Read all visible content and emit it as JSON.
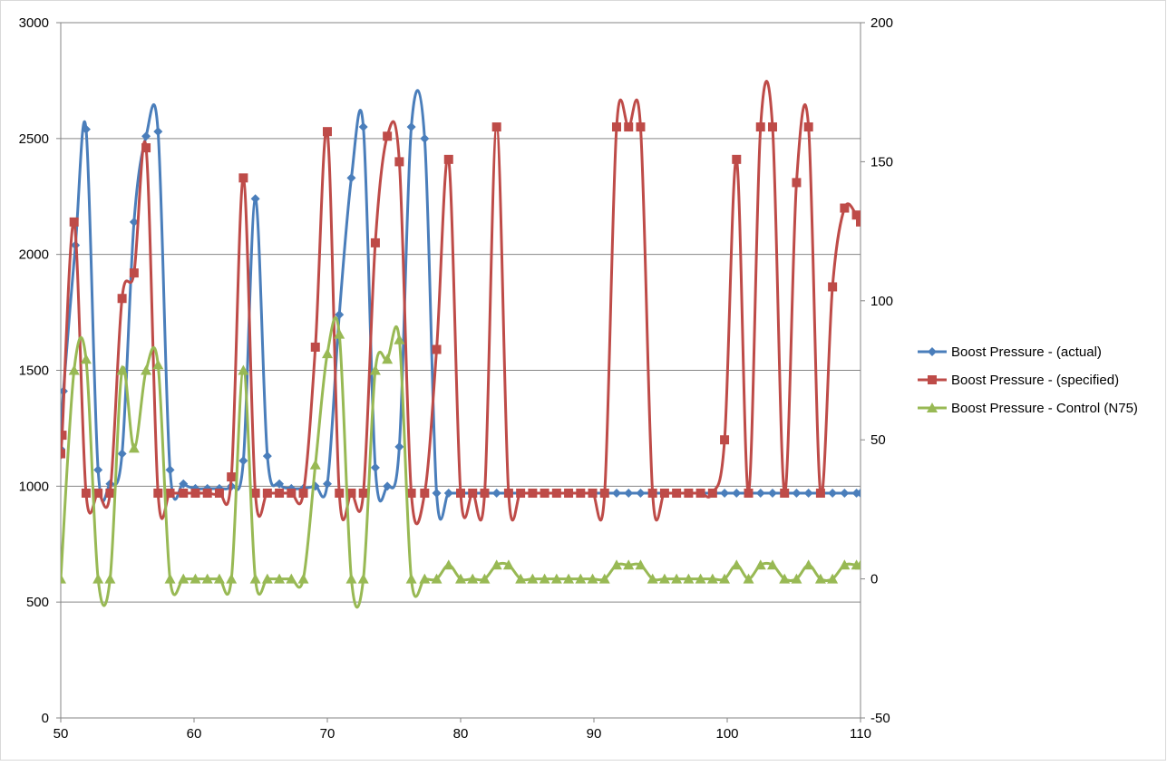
{
  "chart_data": {
    "type": "line",
    "title": "",
    "xlabel": "",
    "ylabel": "",
    "xlim": [
      50,
      110
    ],
    "ylim": [
      0,
      3000
    ],
    "y2lim": [
      -50,
      200
    ],
    "x_ticks": [
      "50",
      "60",
      "70",
      "80",
      "90",
      "100",
      "110"
    ],
    "y_ticks": [
      "0",
      "500",
      "1000",
      "1500",
      "2000",
      "2500",
      "3000"
    ],
    "y2_ticks": [
      "-50",
      "0",
      "50",
      "100",
      "150",
      "200"
    ],
    "x_tick_values": [
      50,
      60,
      70,
      80,
      90,
      100,
      110
    ],
    "y_tick_values": [
      0,
      500,
      1000,
      1500,
      2000,
      2500,
      3000
    ],
    "y2_tick_values": [
      -50,
      0,
      50,
      100,
      150,
      200
    ],
    "grid": "horizontal major",
    "legend": {
      "placement": "right"
    },
    "series": [
      {
        "name": "Boost Pressure - (actual)",
        "axis": "left",
        "color": "#4a7ebb",
        "marker": "diamond",
        "x": [
          50.0,
          50.2,
          51.1,
          51.9,
          52.8,
          53.7,
          54.6,
          55.5,
          56.4,
          57.3,
          58.2,
          59.2,
          60.1,
          61.0,
          61.9,
          62.8,
          63.7,
          64.6,
          65.5,
          66.4,
          67.3,
          68.2,
          69.1,
          70.0,
          70.9,
          71.8,
          72.7,
          73.6,
          74.5,
          75.4,
          76.3,
          77.3,
          78.2,
          79.1,
          80.0,
          80.9,
          81.8,
          82.7,
          83.6,
          84.5,
          85.4,
          86.3,
          87.2,
          88.1,
          89.0,
          89.9,
          90.8,
          91.7,
          92.6,
          93.5,
          94.4,
          95.3,
          96.2,
          97.1,
          98.0,
          98.9,
          99.8,
          100.7,
          101.6,
          102.5,
          103.4,
          104.3,
          105.2,
          106.1,
          107.0,
          107.9,
          108.8,
          109.7,
          110.0
        ],
        "y": [
          1160,
          1410,
          2040,
          2540,
          1070,
          1010,
          1140,
          2140,
          2510,
          2530,
          1070,
          1010,
          990,
          990,
          990,
          1000,
          1110,
          2240,
          1130,
          1010,
          990,
          990,
          1000,
          1010,
          1740,
          2330,
          2550,
          1080,
          1000,
          1170,
          2550,
          2500,
          970,
          970,
          970,
          970,
          970,
          970,
          970,
          970,
          970,
          970,
          970,
          970,
          970,
          970,
          970,
          970,
          970,
          970,
          970,
          970,
          970,
          970,
          970,
          970,
          970,
          970,
          970,
          970,
          970,
          970,
          970,
          970,
          970,
          970,
          970,
          970,
          970
        ]
      },
      {
        "name": "Boost Pressure - (specified)",
        "axis": "left",
        "color": "#be4b48",
        "marker": "square",
        "x": [
          50.0,
          50.1,
          51.0,
          51.9,
          52.8,
          53.7,
          54.6,
          55.5,
          56.4,
          57.3,
          58.2,
          59.2,
          60.1,
          61.0,
          61.9,
          62.8,
          63.7,
          64.6,
          65.5,
          66.4,
          67.3,
          68.2,
          69.1,
          70.0,
          70.9,
          71.8,
          72.7,
          73.6,
          74.5,
          75.4,
          76.3,
          77.3,
          78.2,
          79.1,
          80.0,
          80.9,
          81.8,
          82.7,
          83.6,
          84.5,
          85.4,
          86.3,
          87.2,
          88.1,
          89.0,
          89.9,
          90.8,
          91.7,
          92.6,
          93.5,
          94.4,
          95.3,
          96.2,
          97.1,
          98.0,
          98.9,
          99.8,
          100.7,
          101.6,
          102.5,
          103.4,
          104.3,
          105.2,
          106.1,
          107.0,
          107.9,
          108.8,
          109.7,
          110.0
        ],
        "y": [
          1140,
          1220,
          2140,
          970,
          970,
          970,
          1810,
          1920,
          2460,
          970,
          970,
          970,
          970,
          970,
          970,
          1040,
          2330,
          970,
          970,
          970,
          970,
          970,
          1600,
          2530,
          970,
          970,
          970,
          2050,
          2510,
          2400,
          970,
          970,
          1590,
          2410,
          970,
          970,
          970,
          2550,
          970,
          970,
          970,
          970,
          970,
          970,
          970,
          970,
          970,
          2550,
          2550,
          2550,
          970,
          970,
          970,
          970,
          970,
          970,
          1200,
          2410,
          970,
          2550,
          2550,
          970,
          2310,
          2550,
          970,
          1860,
          2200,
          2170,
          2140
        ]
      },
      {
        "name": "Boost Pressure - Control (N75)",
        "axis": "right",
        "color": "#98b954",
        "marker": "triangle",
        "x": [
          50.0,
          51.0,
          51.9,
          52.8,
          53.7,
          54.6,
          55.5,
          56.4,
          57.3,
          58.2,
          59.2,
          60.1,
          61.0,
          61.9,
          62.8,
          63.7,
          64.6,
          65.5,
          66.4,
          67.3,
          68.2,
          69.1,
          70.0,
          70.9,
          71.8,
          72.7,
          73.6,
          74.5,
          75.4,
          76.3,
          77.3,
          78.2,
          79.1,
          80.0,
          80.9,
          81.8,
          82.7,
          83.6,
          84.5,
          85.4,
          86.3,
          87.2,
          88.1,
          89.0,
          89.9,
          90.8,
          91.7,
          92.6,
          93.5,
          94.4,
          95.3,
          96.2,
          97.1,
          98.0,
          98.9,
          99.8,
          100.7,
          101.6,
          102.5,
          103.4,
          104.3,
          105.2,
          106.1,
          107.0,
          107.9,
          108.8,
          109.7,
          110.0
        ],
        "y": [
          0,
          75,
          79,
          0,
          0,
          75,
          47,
          75,
          77,
          0,
          0,
          0,
          0,
          0,
          0,
          75,
          0,
          0,
          0,
          0,
          0,
          41,
          81,
          88,
          0,
          0,
          75,
          79,
          86,
          0,
          0,
          0,
          5,
          0,
          0,
          0,
          5,
          5,
          0,
          0,
          0,
          0,
          0,
          0,
          0,
          0,
          5,
          5,
          5,
          0,
          0,
          0,
          0,
          0,
          0,
          0,
          5,
          0,
          5,
          5,
          0,
          0,
          5,
          0,
          0,
          5,
          5,
          5
        ]
      }
    ]
  }
}
